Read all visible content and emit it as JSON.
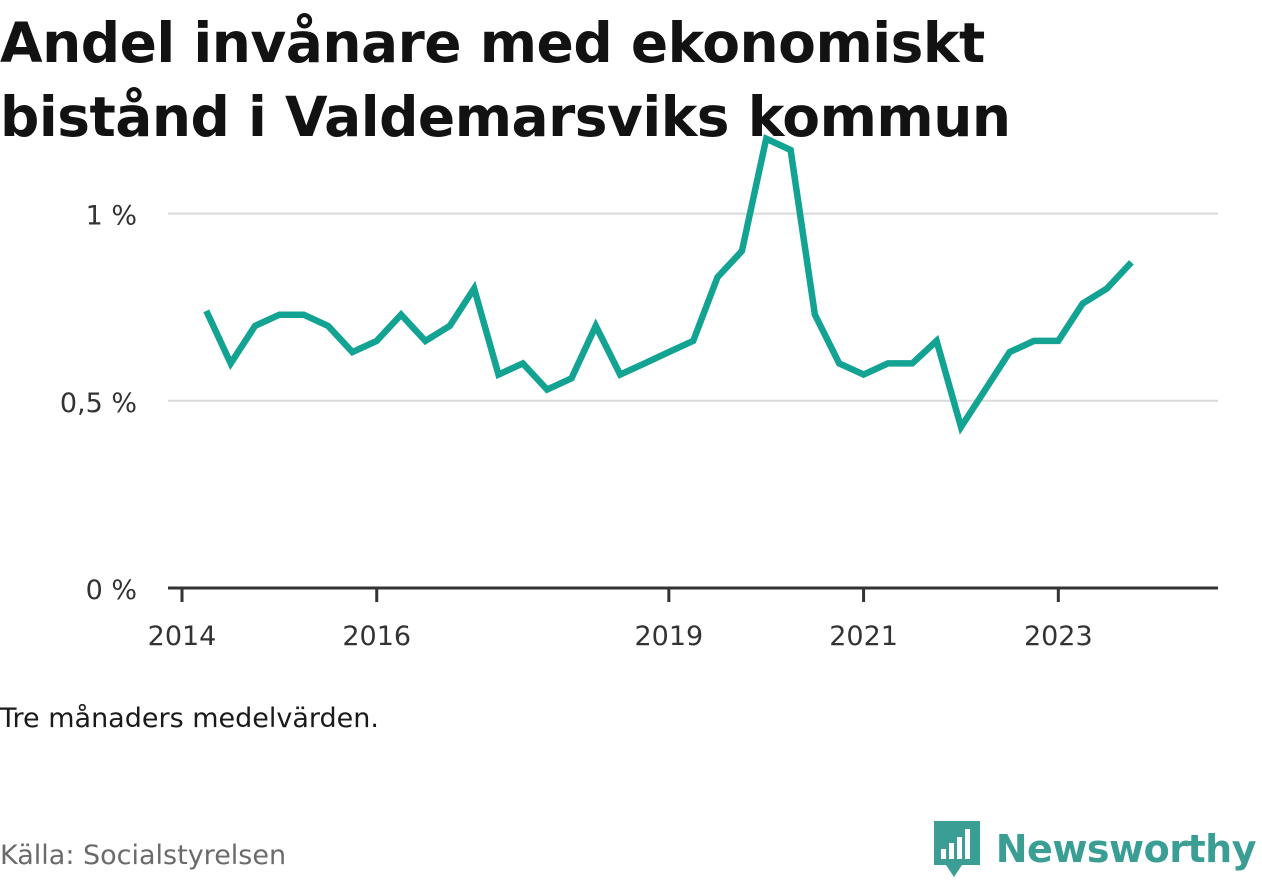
{
  "title": "Andel invånare med ekonomiskt bistånd i Valdemarsviks kommun",
  "note": "Tre månaders medelvärden.",
  "source": "Källa: Socialstyrelsen",
  "brand": {
    "name": "Newsworthy",
    "icon": "newsworthy-logo-icon",
    "color": "#3a9e94"
  },
  "colors": {
    "line": "#13a393",
    "grid": "#d9d9d9",
    "axis": "#333333",
    "text": "#141414"
  },
  "chart_data": {
    "type": "line",
    "title": "Andel invånare med ekonomiskt bistånd i Valdemarsviks kommun",
    "xlabel": "",
    "ylabel": "",
    "x_range": [
      "2014-01-01",
      "2024-06-30"
    ],
    "ylim": [
      0,
      1.25
    ],
    "y_unit": "%",
    "y_ticks": [
      {
        "value": 0,
        "label": "0 %"
      },
      {
        "value": 0.5,
        "label": "0,5 %"
      },
      {
        "value": 1,
        "label": "1 %"
      }
    ],
    "x_ticks": [
      {
        "date": "2014-01-01",
        "label": "2014"
      },
      {
        "date": "2016-01-01",
        "label": "2016"
      },
      {
        "date": "2019-01-01",
        "label": "2019"
      },
      {
        "date": "2021-01-01",
        "label": "2021"
      },
      {
        "date": "2023-01-01",
        "label": "2023"
      }
    ],
    "grid": true,
    "series": [
      {
        "x": [
          "2014-04",
          "2014-07",
          "2014-10",
          "2015-01",
          "2015-04",
          "2015-07",
          "2015-10",
          "2016-01",
          "2016-04",
          "2016-07",
          "2016-10",
          "2017-01",
          "2017-04",
          "2017-07",
          "2017-10",
          "2018-01",
          "2018-04",
          "2018-07",
          "2018-10",
          "2019-01",
          "2019-04",
          "2019-07",
          "2019-10",
          "2020-01",
          "2020-04",
          "2020-07",
          "2020-10",
          "2021-01",
          "2021-04",
          "2021-07",
          "2021-10",
          "2022-01",
          "2022-04",
          "2022-07",
          "2022-10",
          "2023-01",
          "2023-04",
          "2023-07",
          "2023-10"
        ],
        "values": [
          0.74,
          0.6,
          0.7,
          0.73,
          0.73,
          0.7,
          0.63,
          0.66,
          0.73,
          0.66,
          0.7,
          0.8,
          0.57,
          0.6,
          0.53,
          0.56,
          0.7,
          0.57,
          0.6,
          0.63,
          0.66,
          0.83,
          0.9,
          1.2,
          1.17,
          0.73,
          0.6,
          0.57,
          0.6,
          0.6,
          0.66,
          0.43,
          0.53,
          0.63,
          0.66,
          0.66,
          0.76,
          0.8,
          0.87
        ]
      }
    ]
  }
}
